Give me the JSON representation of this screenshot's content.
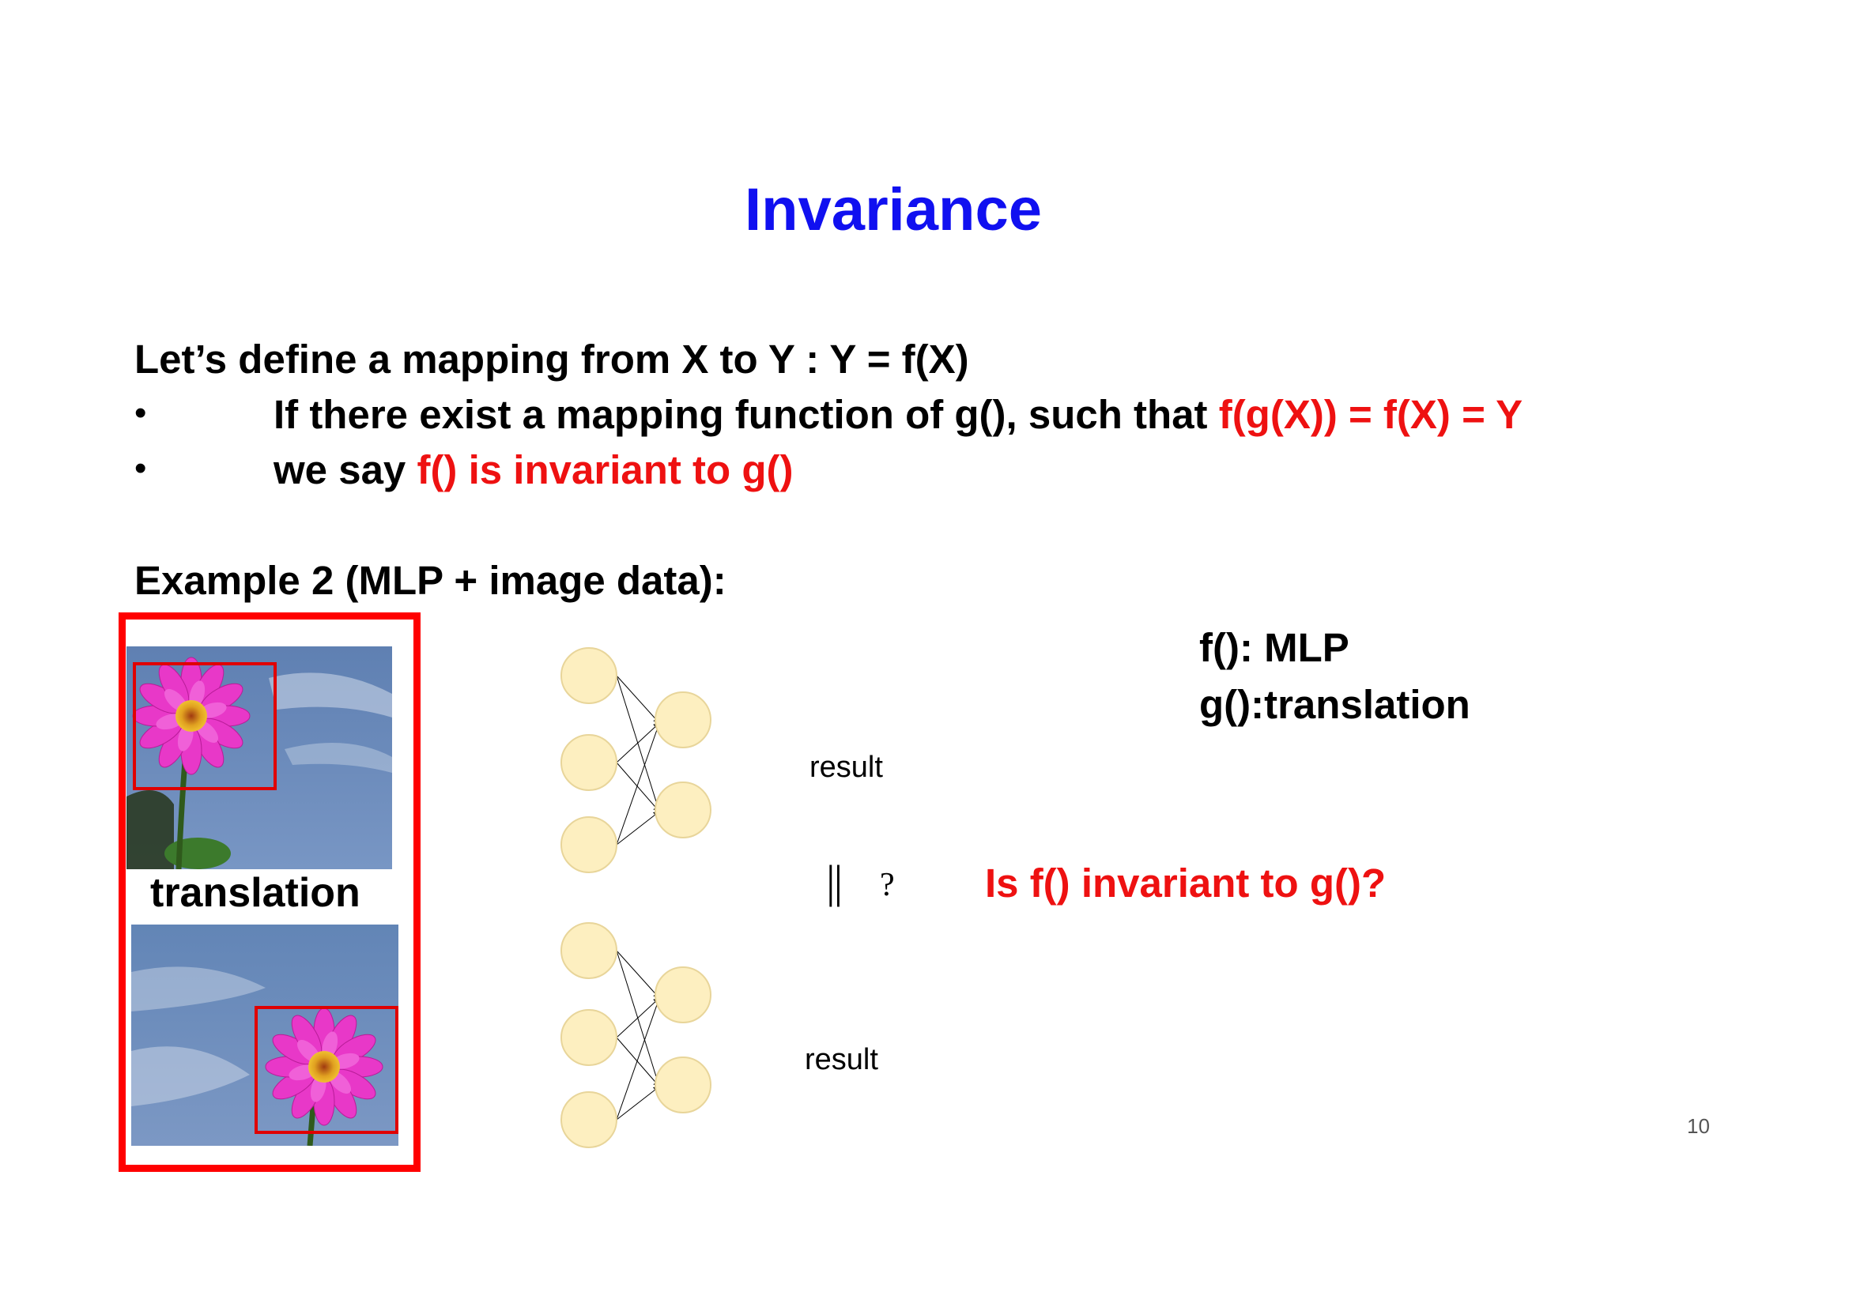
{
  "title": "Invariance",
  "definition": {
    "intro": "Let’s define a mapping from X to Y : Y = f(X)",
    "bullet_symbol": "•",
    "line1_prefix": "If there exist a mapping function of g(), such that ",
    "line1_highlight": "f(g(X)) = f(X) = Y",
    "line2_prefix": "we say ",
    "line2_highlight": "f() is invariant to g()"
  },
  "example": {
    "heading": "Example 2 (MLP + image data):",
    "image_caption": "translation",
    "f_label": "f(): MLP",
    "g_label": "g():translation",
    "result_top": "result",
    "result_bottom": "result",
    "compare_symbol": "||",
    "question_mark": "?",
    "question": "Is f() invariant to g()?"
  },
  "page_number": "10",
  "colors": {
    "title": "#1010f0",
    "highlight": "#ee1111",
    "frame": "#ff0000",
    "node_fill": "#fdefc0",
    "node_stroke": "#e8d59a",
    "sky": "#6a8ab8",
    "petal": "#e838c8"
  }
}
